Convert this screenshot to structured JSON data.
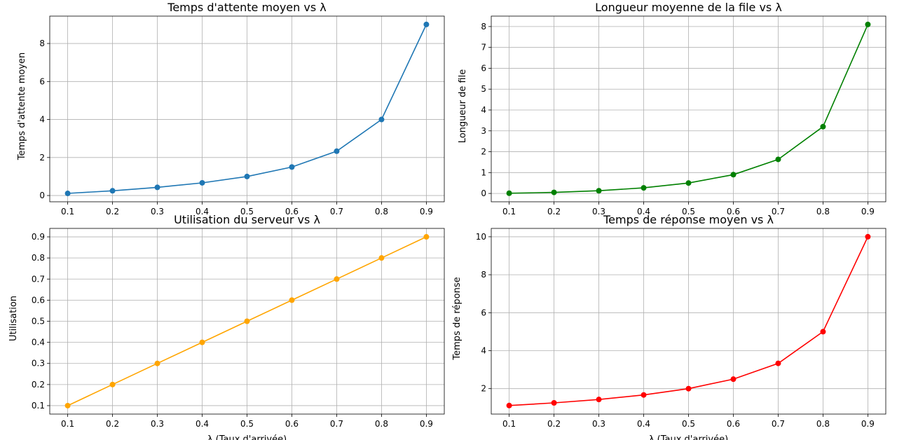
{
  "chart_data": [
    {
      "type": "line",
      "title": "Temps d'attente moyen vs λ",
      "xlabel": "",
      "ylabel": "Temps d'attente moyen",
      "x": [
        0.1,
        0.2,
        0.3,
        0.4,
        0.5,
        0.6,
        0.7,
        0.8,
        0.9
      ],
      "values": [
        0.111,
        0.25,
        0.429,
        0.667,
        1.0,
        1.5,
        2.333,
        4.0,
        9.0
      ],
      "xticks": [
        "0.1",
        "0.2",
        "0.3",
        "0.4",
        "0.5",
        "0.6",
        "0.7",
        "0.8",
        "0.9"
      ],
      "yticks": [
        "0",
        "2",
        "4",
        "6",
        "8"
      ],
      "xlim": [
        0.06,
        0.94
      ],
      "ylim": [
        -0.33,
        9.44
      ],
      "color": "#1f77b4",
      "marker": "circle",
      "grid": true
    },
    {
      "type": "line",
      "title": "Longueur moyenne de la file vs λ",
      "xlabel": "",
      "ylabel": "Longueur de file",
      "x": [
        0.1,
        0.2,
        0.3,
        0.4,
        0.5,
        0.6,
        0.7,
        0.8,
        0.9
      ],
      "values": [
        0.011,
        0.05,
        0.129,
        0.267,
        0.5,
        0.9,
        1.633,
        3.2,
        8.1
      ],
      "xticks": [
        "0.1",
        "0.2",
        "0.3",
        "0.4",
        "0.5",
        "0.6",
        "0.7",
        "0.8",
        "0.9"
      ],
      "yticks": [
        "0",
        "1",
        "2",
        "3",
        "4",
        "5",
        "6",
        "7",
        "8"
      ],
      "xlim": [
        0.06,
        0.94
      ],
      "ylim": [
        -0.4,
        8.5
      ],
      "color": "#008000",
      "marker": "circle",
      "grid": true
    },
    {
      "type": "line",
      "title": "Utilisation du serveur vs λ",
      "xlabel": "λ (Taux d'arrivée)",
      "ylabel": "Utilisation",
      "x": [
        0.1,
        0.2,
        0.3,
        0.4,
        0.5,
        0.6,
        0.7,
        0.8,
        0.9
      ],
      "values": [
        0.1,
        0.2,
        0.3,
        0.4,
        0.5,
        0.6,
        0.7,
        0.8,
        0.9
      ],
      "xticks": [
        "0.1",
        "0.2",
        "0.3",
        "0.4",
        "0.5",
        "0.6",
        "0.7",
        "0.8",
        "0.9"
      ],
      "yticks": [
        "0.1",
        "0.2",
        "0.3",
        "0.4",
        "0.5",
        "0.6",
        "0.7",
        "0.8",
        "0.9"
      ],
      "xlim": [
        0.06,
        0.94
      ],
      "ylim": [
        0.06,
        0.94
      ],
      "color": "#ffa500",
      "marker": "circle",
      "grid": true
    },
    {
      "type": "line",
      "title": "Temps de réponse moyen vs λ",
      "xlabel": "λ (Taux d'arrivée)",
      "ylabel": "Temps de réponse",
      "x": [
        0.1,
        0.2,
        0.3,
        0.4,
        0.5,
        0.6,
        0.7,
        0.8,
        0.9
      ],
      "values": [
        1.111,
        1.25,
        1.429,
        1.667,
        2.0,
        2.5,
        3.333,
        5.0,
        10.0
      ],
      "xticks": [
        "0.1",
        "0.2",
        "0.3",
        "0.4",
        "0.5",
        "0.6",
        "0.7",
        "0.8",
        "0.9"
      ],
      "yticks": [
        "2",
        "4",
        "6",
        "8",
        "10"
      ],
      "xlim": [
        0.06,
        0.94
      ],
      "ylim": [
        0.66,
        10.44
      ],
      "color": "#ff0000",
      "marker": "circle",
      "grid": true
    }
  ]
}
